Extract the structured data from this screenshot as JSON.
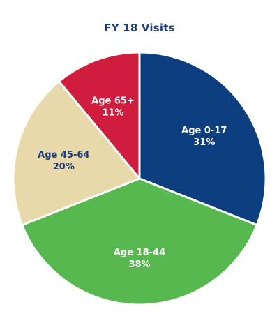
{
  "chart_data": {
    "type": "pie",
    "title": "FY 18 Visits",
    "title_color": "#1f3f7a",
    "start": "12 o'clock, clockwise",
    "slices": [
      {
        "label": "Age 0-17",
        "value_label": "31%",
        "value": 31,
        "color": "#0d3f80",
        "text_color": "#ffffff"
      },
      {
        "label": "Age 18-44",
        "value_label": "38%",
        "value": 38,
        "color": "#56b84e",
        "text_color": "#ffffff"
      },
      {
        "label": "Age 45-64",
        "value_label": "20%",
        "value": 20,
        "color": "#e7d9a9",
        "text_color": "#1f3f7a"
      },
      {
        "label": "Age 65+",
        "value_label": "11%",
        "value": 11,
        "color": "#d11d3d",
        "text_color": "#ffffff"
      }
    ]
  }
}
